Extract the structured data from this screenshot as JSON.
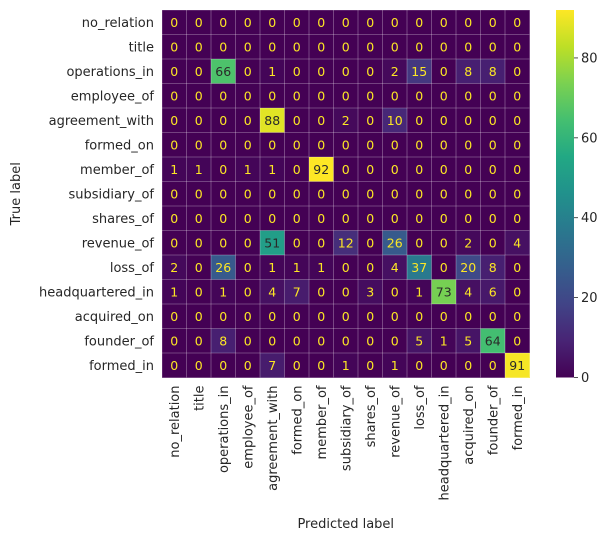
{
  "chart_data": {
    "type": "heatmap",
    "title": "",
    "xlabel": "Predicted label",
    "ylabel": "True label",
    "labels": [
      "no_relation",
      "title",
      "operations_in",
      "employee_of",
      "agreement_with",
      "formed_on",
      "member_of",
      "subsidiary_of",
      "shares_of",
      "revenue_of",
      "loss_of",
      "headquartered_in",
      "acquired_on",
      "founder_of",
      "formed_in"
    ],
    "matrix": [
      [
        0,
        0,
        0,
        0,
        0,
        0,
        0,
        0,
        0,
        0,
        0,
        0,
        0,
        0,
        0
      ],
      [
        0,
        0,
        0,
        0,
        0,
        0,
        0,
        0,
        0,
        0,
        0,
        0,
        0,
        0,
        0
      ],
      [
        0,
        0,
        66,
        0,
        1,
        0,
        0,
        0,
        0,
        2,
        15,
        0,
        8,
        8,
        0
      ],
      [
        0,
        0,
        0,
        0,
        0,
        0,
        0,
        0,
        0,
        0,
        0,
        0,
        0,
        0,
        0
      ],
      [
        0,
        0,
        0,
        0,
        88,
        0,
        0,
        2,
        0,
        10,
        0,
        0,
        0,
        0,
        0
      ],
      [
        0,
        0,
        0,
        0,
        0,
        0,
        0,
        0,
        0,
        0,
        0,
        0,
        0,
        0,
        0
      ],
      [
        1,
        1,
        0,
        1,
        1,
        0,
        92,
        0,
        0,
        0,
        0,
        0,
        0,
        0,
        0
      ],
      [
        0,
        0,
        0,
        0,
        0,
        0,
        0,
        0,
        0,
        0,
        0,
        0,
        0,
        0,
        0
      ],
      [
        0,
        0,
        0,
        0,
        0,
        0,
        0,
        0,
        0,
        0,
        0,
        0,
        0,
        0,
        0
      ],
      [
        0,
        0,
        0,
        0,
        51,
        0,
        0,
        12,
        0,
        26,
        0,
        0,
        2,
        0,
        4
      ],
      [
        2,
        0,
        26,
        0,
        1,
        1,
        1,
        0,
        0,
        4,
        37,
        0,
        20,
        8,
        0
      ],
      [
        1,
        0,
        1,
        0,
        4,
        7,
        0,
        0,
        3,
        0,
        1,
        73,
        4,
        6,
        0
      ],
      [
        0,
        0,
        0,
        0,
        0,
        0,
        0,
        0,
        0,
        0,
        0,
        0,
        0,
        0,
        0
      ],
      [
        0,
        0,
        8,
        0,
        0,
        0,
        0,
        0,
        0,
        0,
        5,
        1,
        5,
        64,
        0
      ],
      [
        0,
        0,
        0,
        0,
        7,
        0,
        0,
        1,
        0,
        1,
        0,
        0,
        0,
        0,
        91
      ]
    ],
    "colormap": "viridis",
    "colorbar": {
      "min": 0,
      "max": 92,
      "ticks": [
        0,
        20,
        40,
        60,
        80
      ]
    },
    "grid": true
  }
}
